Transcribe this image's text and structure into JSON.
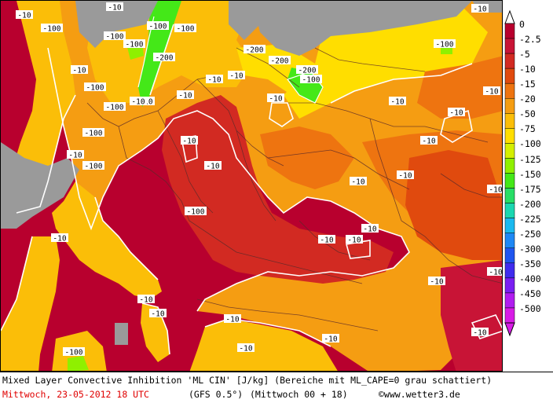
{
  "caption": {
    "line1": "Mixed Layer Convective Inhibition 'ML CIN' [J/kg] (Bereiche mit ML_CAPE=0 grau schattiert)",
    "date": "Mittwoch, 23-05-2012  18 UTC",
    "model": "(GFS 0.5°)",
    "run": "(Mittwoch 00 + 18)",
    "copyright": "©www.wetter3.de"
  },
  "legend": {
    "colors": {
      "0": "#b8002e",
      "-2.5": "#c81436",
      "-5": "#d22a22",
      "-10": "#e04a0e",
      "-15": "#ee7410",
      "-20": "#f59d12",
      "-50": "#fbbe08",
      "-75": "#ffde00",
      "-100": "#d4ef00",
      "-125": "#8ff000",
      "-150": "#44e818",
      "-175": "#27de66",
      "-200": "#1ad7b0",
      "-225": "#1ab9ef",
      "-250": "#1e88f5",
      "-300": "#1f55ef",
      "-350": "#3f2cee",
      "-400": "#7a1ff2",
      "-450": "#b11df0",
      "-500": "#d81ce6"
    },
    "labels": [
      "0",
      "-2.5",
      "-5",
      "-10",
      "-15",
      "-20",
      "-50",
      "-75",
      "-100",
      "-125",
      "-150",
      "-175",
      "-200",
      "-225",
      "-250",
      "-300",
      "-350",
      "-400",
      "-450",
      "-500"
    ]
  },
  "map": {
    "no_cape_color": "#9a9a9a",
    "contour_labels": [
      "-10",
      "-100",
      "-10",
      "-10",
      "-100",
      "-100",
      "-10",
      "-10",
      "-100",
      "-100",
      "-10",
      "-100",
      "-100",
      "-200",
      "-100",
      "-200",
      "-200",
      "-200",
      "-100",
      "-100",
      "-10",
      "-10",
      "-10",
      "-10",
      "-10",
      "-100",
      "-10",
      "-10",
      "-10",
      "-10",
      "-10",
      "-10",
      "-10",
      "-10",
      "-10",
      "-10",
      "-10",
      "-10",
      "-10",
      "-10",
      "-10",
      "-10",
      "-10",
      "-10",
      "-10",
      "-10",
      "-10",
      "-100",
      "-100"
    ]
  }
}
